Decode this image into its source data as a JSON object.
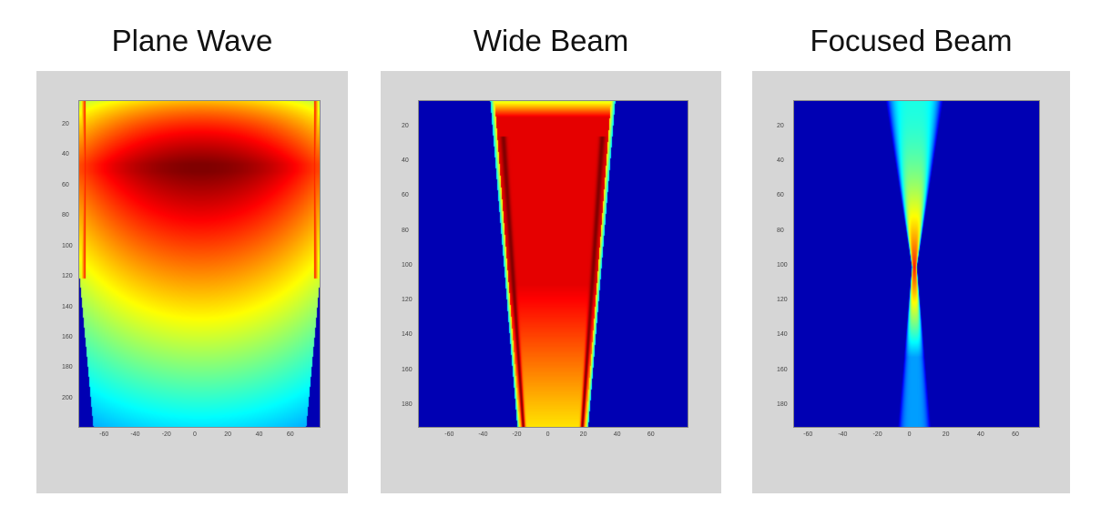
{
  "chart_data": [
    {
      "type": "heatmap",
      "title": "Plane Wave",
      "xlim": [
        -77,
        77
      ],
      "ylim": [
        4,
        218
      ],
      "xticks": [
        -60,
        -40,
        -20,
        0,
        20,
        40,
        60
      ],
      "yticks": [
        20,
        40,
        60,
        80,
        100,
        120,
        140,
        160,
        180,
        200
      ],
      "colormap": "jet",
      "model": "plane",
      "description_peak_depth": 50
    },
    {
      "type": "heatmap",
      "title": "Wide Beam",
      "xlim": [
        -79,
        80
      ],
      "ylim": [
        5,
        192
      ],
      "xticks": [
        -60,
        -40,
        -20,
        0,
        20,
        40,
        60
      ],
      "yticks": [
        20,
        40,
        60,
        80,
        100,
        120,
        140,
        160,
        180
      ],
      "colormap": "jet",
      "model": "wide"
    },
    {
      "type": "heatmap",
      "title": "Focused Beam",
      "xlim": [
        -69,
        72
      ],
      "ylim": [
        5,
        192
      ],
      "xticks": [
        -60,
        -40,
        -20,
        0,
        20,
        40,
        60
      ],
      "yticks": [
        20,
        40,
        60,
        80,
        100,
        120,
        140,
        160,
        180
      ],
      "colormap": "jet",
      "model": "focused",
      "focus_depth": 100
    }
  ],
  "colors": {
    "panel_bg": "#d6d6d6",
    "background_blue": "#0019a0"
  }
}
